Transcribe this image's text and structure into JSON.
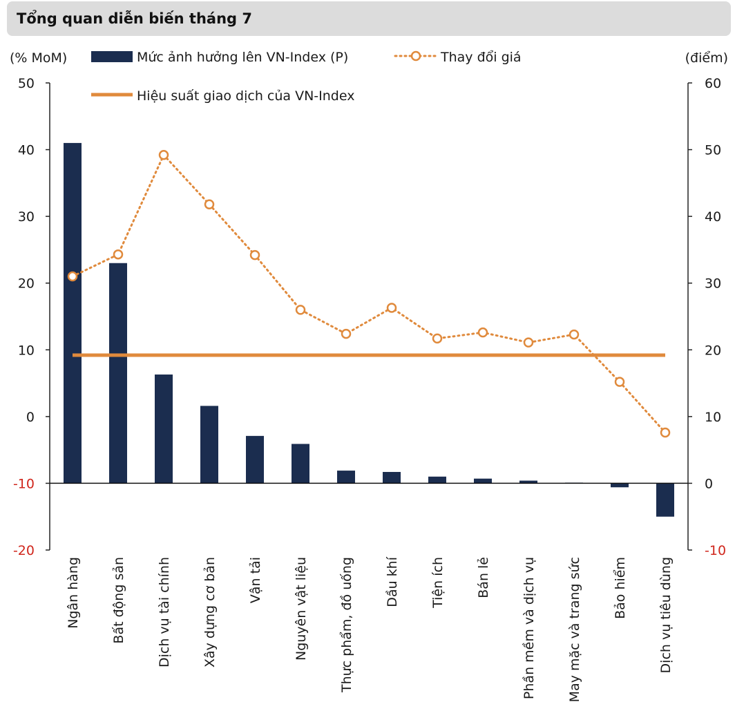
{
  "header": {
    "title": "Tổng quan diễn biến tháng 7"
  },
  "colors": {
    "bar": "#1b2d4f",
    "line": "#e08a3c",
    "negative_tick": "#d0261c"
  },
  "chart_data": {
    "type": "bar",
    "title": "Tổng quan diễn biến tháng 7",
    "categories": [
      "Ngân hàng",
      "Bất động sản",
      "Dịch vụ tài chính",
      "Xây dựng cơ bản",
      "Vận tải",
      "Nguyên vật liệu",
      "Thực phẩm, đồ uống",
      "Dầu khí",
      "Tiện ích",
      "Bán lẻ",
      "Phần mềm và dịch vụ",
      "May mặc và trang sức",
      "Bảo hiểm",
      "Dịch vụ tiêu dùng"
    ],
    "ylabel_left": "(% MoM)",
    "ylabel_right": "(điểm)",
    "ylim_left": [
      -20,
      50
    ],
    "ylim_right": [
      -10,
      60
    ],
    "yticks_left": [
      "50",
      "40",
      "30",
      "20",
      "10",
      "0",
      "-10",
      "-20"
    ],
    "yticks_right": [
      "60",
      "50",
      "40",
      "30",
      "20",
      "10",
      "0",
      "-10"
    ],
    "series": [
      {
        "name": "Mức ảnh hưởng lên VN-Index (P)",
        "type": "bar",
        "axis": "right",
        "values": [
          51.0,
          33.0,
          16.3,
          11.6,
          7.1,
          5.9,
          1.9,
          1.7,
          1.0,
          0.7,
          0.4,
          0.1,
          -0.6,
          -5.0
        ]
      },
      {
        "name": "Thay đổi giá",
        "type": "line-dotted-markers",
        "axis": "left",
        "values": [
          21.0,
          24.3,
          39.2,
          31.8,
          24.2,
          16.0,
          12.4,
          16.3,
          11.7,
          12.6,
          11.1,
          12.3,
          5.2,
          -2.4
        ]
      },
      {
        "name": "Hiệu suất giao dịch của VN-Index",
        "type": "line",
        "axis": "left",
        "values": [
          9.2,
          9.2,
          9.2,
          9.2,
          9.2,
          9.2,
          9.2,
          9.2,
          9.2,
          9.2,
          9.2,
          9.2,
          9.2,
          9.2
        ]
      }
    ],
    "grid": false,
    "legend": "top"
  }
}
